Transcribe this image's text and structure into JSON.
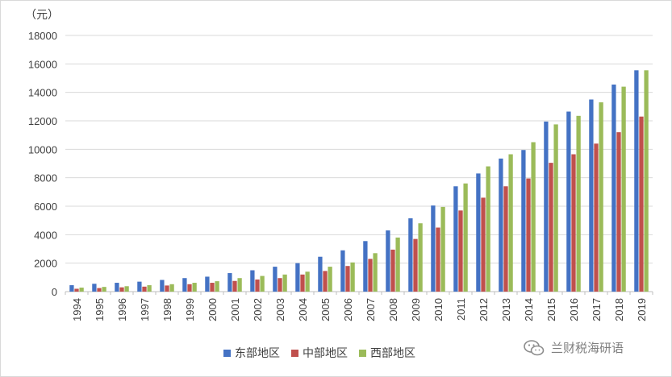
{
  "chart_data": {
    "type": "bar",
    "unit_label": "（元）",
    "categories": [
      "1994",
      "1995",
      "1996",
      "1997",
      "1998",
      "1999",
      "2000",
      "2001",
      "2002",
      "2003",
      "2004",
      "2005",
      "2006",
      "2007",
      "2008",
      "2009",
      "2010",
      "2011",
      "2012",
      "2013",
      "2014",
      "2015",
      "2016",
      "2017",
      "2018",
      "2019"
    ],
    "series": [
      {
        "name": "东部地区",
        "color": "#4472c4",
        "values": [
          450,
          550,
          620,
          700,
          820,
          950,
          1050,
          1300,
          1500,
          1750,
          2000,
          2450,
          2900,
          3550,
          4300,
          5150,
          6050,
          7400,
          8300,
          9350,
          9950,
          11950,
          12650,
          13500,
          14550,
          15550
        ]
      },
      {
        "name": "中部地区",
        "color": "#c0504d",
        "values": [
          200,
          250,
          300,
          350,
          430,
          520,
          620,
          750,
          850,
          950,
          1200,
          1450,
          1800,
          2300,
          2950,
          3700,
          4500,
          5700,
          6600,
          7400,
          7950,
          9050,
          9650,
          10400,
          11200,
          12300
        ]
      },
      {
        "name": "西部地区",
        "color": "#9bbb59",
        "values": [
          280,
          330,
          380,
          450,
          520,
          620,
          730,
          950,
          1100,
          1200,
          1400,
          1750,
          2050,
          2700,
          3800,
          4800,
          5950,
          7600,
          8800,
          9650,
          10500,
          11750,
          12350,
          13300,
          14400,
          15550
        ]
      }
    ],
    "ylim": [
      0,
      18000
    ],
    "yticks": [
      0,
      2000,
      4000,
      6000,
      8000,
      10000,
      12000,
      14000,
      16000,
      18000
    ],
    "grid": true,
    "legend_position": "bottom"
  },
  "watermark": {
    "text": "兰财税海研语",
    "icon": "wechat-icon"
  }
}
